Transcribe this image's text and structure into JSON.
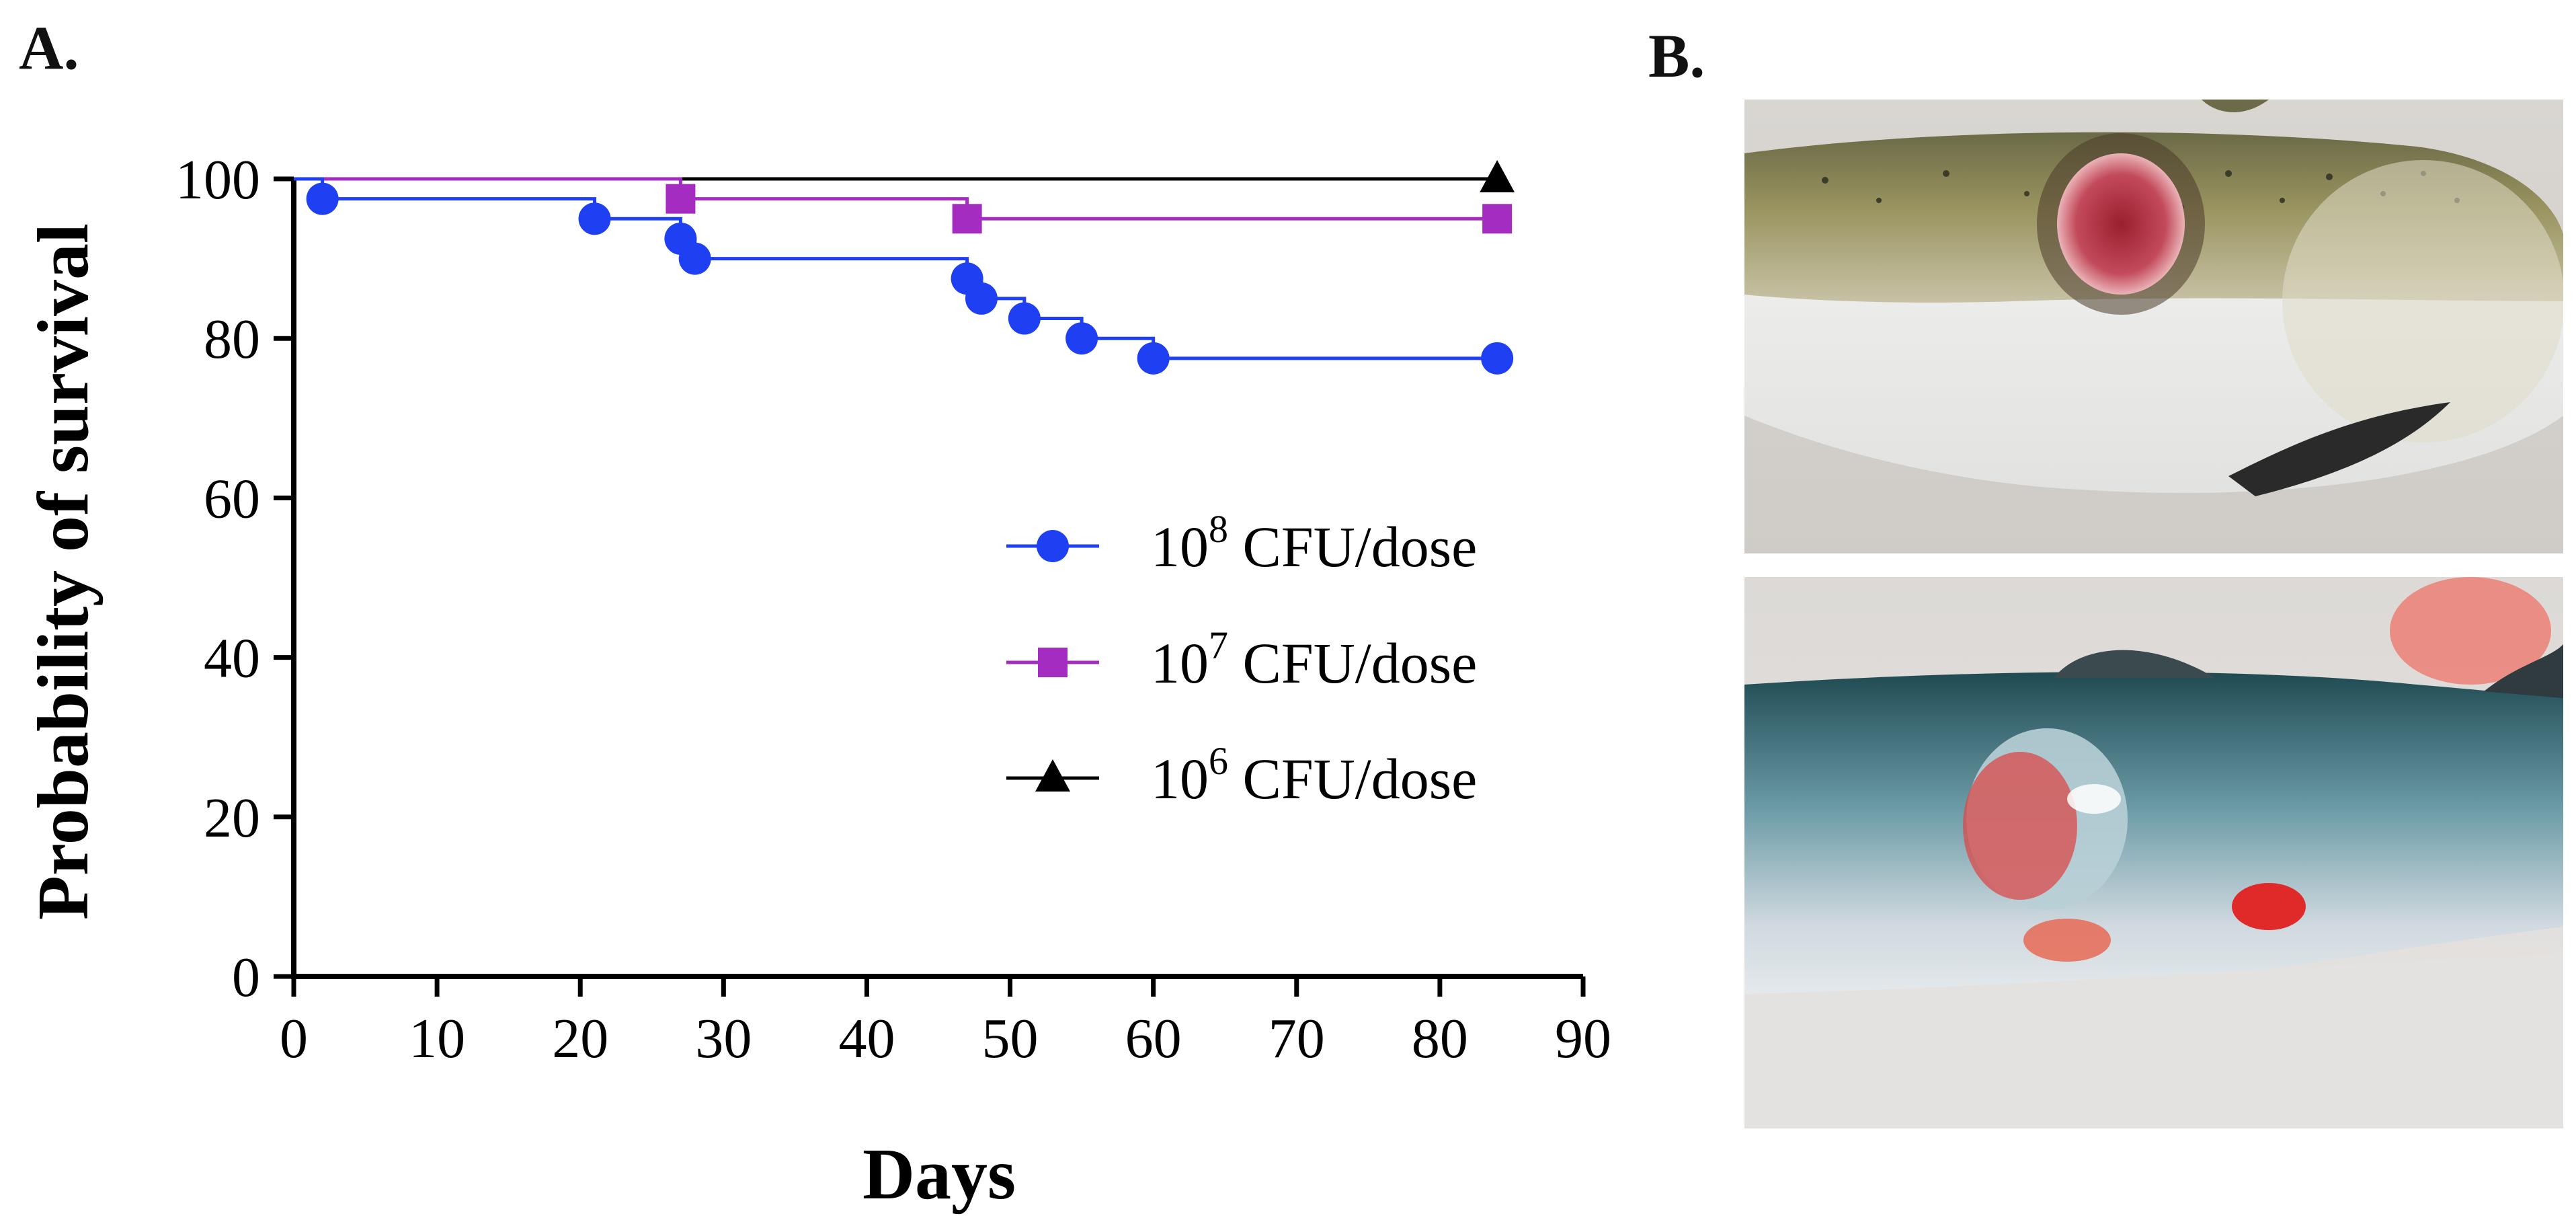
{
  "panels": {
    "a_label": "A.",
    "b_label": "B."
  },
  "chart_data": {
    "type": "line",
    "step": true,
    "xlabel": "Days",
    "ylabel": "Probability of survival",
    "xlim": [
      0,
      90
    ],
    "ylim": [
      0,
      100
    ],
    "xticks": [
      0,
      10,
      20,
      30,
      40,
      50,
      60,
      70,
      80,
      90
    ],
    "yticks": [
      0,
      20,
      40,
      60,
      80,
      100
    ],
    "grid": false,
    "legend_position": "center-right",
    "series": [
      {
        "name": "10^8 CFU/dose",
        "legend_base": "10",
        "legend_exp": "8",
        "legend_unit": " CFU/dose",
        "color": "#1f3ff2",
        "marker": "circle",
        "x": [
          0,
          2,
          21,
          27,
          28,
          47,
          48,
          51,
          55,
          60,
          84
        ],
        "y": [
          100,
          97.5,
          95,
          92.5,
          90,
          87.5,
          85,
          82.5,
          80,
          77.5,
          77.5
        ]
      },
      {
        "name": "10^7 CFU/dose",
        "legend_base": "10",
        "legend_exp": "7",
        "legend_unit": " CFU/dose",
        "color": "#a42cc0",
        "marker": "square",
        "x": [
          0,
          27,
          47,
          84
        ],
        "y": [
          100,
          97.5,
          95,
          95
        ]
      },
      {
        "name": "10^6 CFU/dose",
        "legend_base": "10",
        "legend_exp": "6",
        "legend_unit": " CFU/dose",
        "color": "#000000",
        "marker": "triangle",
        "x": [
          0,
          84
        ],
        "y": [
          100,
          100
        ]
      }
    ]
  },
  "photos": {
    "top": {
      "icon": "fish-ulcer-photo"
    },
    "bottom": {
      "icon": "fish-lesion-photo"
    }
  }
}
